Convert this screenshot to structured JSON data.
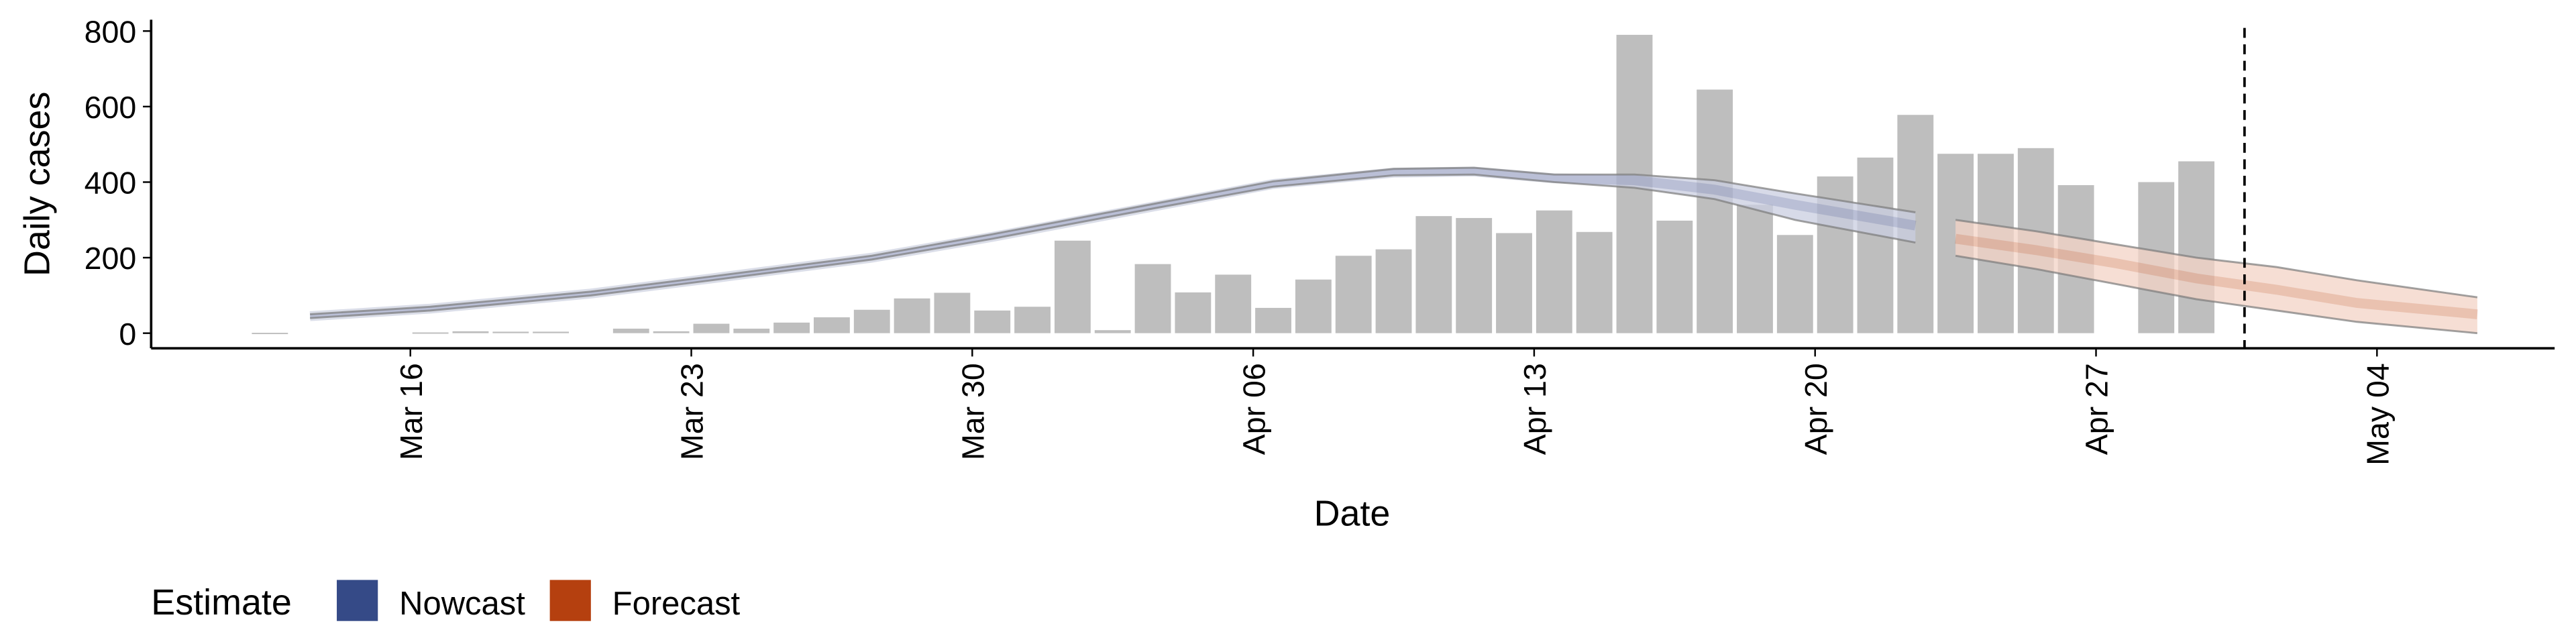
{
  "chart_data": {
    "type": "bar",
    "x_label": "Date",
    "y_label": "Daily cases",
    "categories": [
      "Mar 12",
      "Mar 13",
      "Mar 14",
      "Mar 15",
      "Mar 16",
      "Mar 17",
      "Mar 18",
      "Mar 19",
      "Mar 20",
      "Mar 21",
      "Mar 22",
      "Mar 23",
      "Mar 24",
      "Mar 25",
      "Mar 26",
      "Mar 27",
      "Mar 28",
      "Mar 29",
      "Mar 30",
      "Mar 31",
      "Apr 01",
      "Apr 02",
      "Apr 03",
      "Apr 04",
      "Apr 05",
      "Apr 06",
      "Apr 07",
      "Apr 08",
      "Apr 09",
      "Apr 10",
      "Apr 11",
      "Apr 12",
      "Apr 13",
      "Apr 14",
      "Apr 15",
      "Apr 16",
      "Apr 17",
      "Apr 18",
      "Apr 19",
      "Apr 20",
      "Apr 21",
      "Apr 22",
      "Apr 23",
      "Apr 24",
      "Apr 25",
      "Apr 26",
      "Apr 27",
      "Apr 28",
      "Apr 29",
      "Apr 30",
      "May 01",
      "May 02",
      "May 03",
      "May 04",
      "May 05",
      "May 06"
    ],
    "values": [
      1,
      null,
      null,
      null,
      2,
      5,
      4,
      4,
      null,
      12,
      5,
      25,
      12,
      28,
      42,
      62,
      92,
      107,
      60,
      70,
      245,
      8,
      183,
      108,
      155,
      67,
      142,
      205,
      222,
      310,
      305,
      265,
      325,
      268,
      790,
      298,
      645,
      340,
      260,
      415,
      465,
      578,
      475,
      475,
      490,
      392,
      null,
      400,
      455,
      null,
      null,
      null,
      null,
      null,
      null,
      null
    ],
    "color": "#bebebe",
    "xticks": [
      "Mar 16",
      "Mar 23",
      "Mar 30",
      "Apr 06",
      "Apr 13",
      "Apr 20",
      "Apr 27",
      "May 04"
    ],
    "ylim": [
      -40,
      830
    ],
    "yticks": [
      0,
      200,
      400,
      600,
      800
    ],
    "vline_x": "Apr 30",
    "legend_title": "Estimate",
    "series": [
      {
        "name": "Nowcast",
        "color": "#354a87",
        "band_color": "#c9cee0",
        "x": [
          "Mar 13",
          "Mar 16",
          "Mar 20",
          "Mar 23",
          "Mar 27",
          "Mar 30",
          "Apr 03",
          "Apr 06",
          "Apr 09",
          "Apr 11",
          "Apr 13",
          "Apr 15",
          "Apr 17",
          "Apr 19",
          "Apr 22"
        ],
        "values": [
          45,
          65,
          105,
          145,
          200,
          255,
          335,
          395,
          425,
          428,
          410,
          405,
          380,
          340,
          285
        ],
        "lower": [
          40,
          60,
          100,
          140,
          195,
          250,
          330,
          388,
          418,
          420,
          400,
          385,
          355,
          300,
          240
        ],
        "upper": [
          50,
          70,
          110,
          150,
          205,
          262,
          342,
          402,
          435,
          438,
          420,
          420,
          405,
          370,
          320
        ]
      },
      {
        "name": "Forecast",
        "color": "#b5400f",
        "band_color": "#f3d3c6",
        "x": [
          "Apr 23",
          "Apr 25",
          "Apr 27",
          "Apr 29",
          "May 01",
          "May 03",
          "May 06"
        ],
        "values": [
          250,
          220,
          185,
          145,
          115,
          80,
          50
        ],
        "lower": [
          205,
          170,
          130,
          90,
          60,
          30,
          0
        ],
        "upper": [
          300,
          270,
          235,
          200,
          175,
          140,
          95
        ]
      }
    ]
  }
}
